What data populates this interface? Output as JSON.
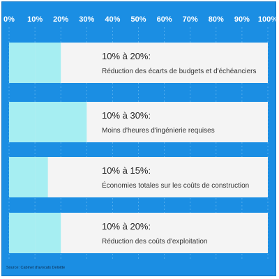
{
  "chart_data": {
    "type": "bar",
    "orientation": "horizontal",
    "xlim": [
      0,
      100
    ],
    "x_ticks": [
      "0%",
      "10%",
      "20%",
      "30%",
      "40%",
      "50%",
      "60%",
      "70%",
      "80%",
      "90%",
      "100%"
    ],
    "grid": true,
    "bars": [
      {
        "low": 10,
        "high": 20,
        "range_label": "10% à 20%:",
        "description": "Réduction des écarts de budgets et d'échéanciers"
      },
      {
        "low": 10,
        "high": 30,
        "range_label": "10% à 30%:",
        "description": "Moins d'heures d'ingénierie requises"
      },
      {
        "low": 10,
        "high": 15,
        "range_label": "10% à 15%:",
        "description": "Économies totales sur les coûts de construction"
      },
      {
        "low": 10,
        "high": 20,
        "range_label": "10% à 20%:",
        "description": "Réduction des coûts d'exploitation"
      }
    ],
    "source": "Source: Cabinet d'avocats Deloitte"
  },
  "colors": {
    "background": "#1b8ee3",
    "bar_track": "#f4f4f4",
    "bar_fill": "#a6eef2",
    "tick_text": "#ffffff"
  }
}
